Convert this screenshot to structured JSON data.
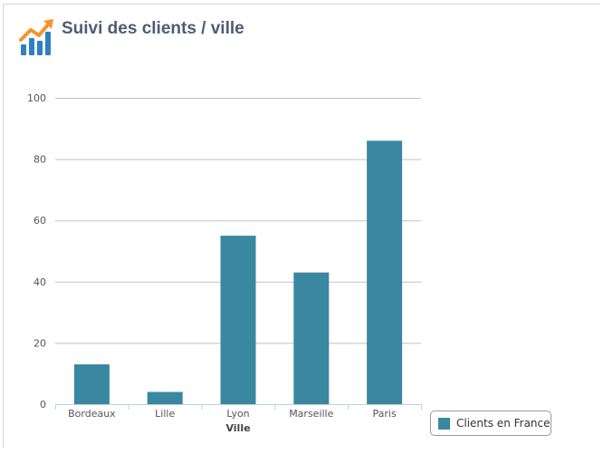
{
  "header": {
    "title": "Suivi des clients / ville",
    "icon": "chart-growth-icon"
  },
  "colors": {
    "bar": "#3a87a1",
    "grid": "#c0c0c0",
    "axis": "#c0d0e0",
    "title": "#4d5d73",
    "logo_bars": "#2f7fc3",
    "logo_arrow": "#f0962d"
  },
  "chart_data": {
    "type": "bar",
    "categories": [
      "Bordeaux",
      "Lille",
      "Lyon",
      "Marseille",
      "Paris"
    ],
    "series": [
      {
        "name": "Clients en France",
        "values": [
          13,
          4,
          55,
          43,
          86
        ]
      }
    ],
    "xlabel": "Ville",
    "ylabel": "",
    "ylim": [
      0,
      100
    ],
    "yticks": [
      "0",
      "20",
      "40",
      "60",
      "80",
      "100"
    ],
    "grid": true,
    "legend_position": "bottom-right"
  }
}
